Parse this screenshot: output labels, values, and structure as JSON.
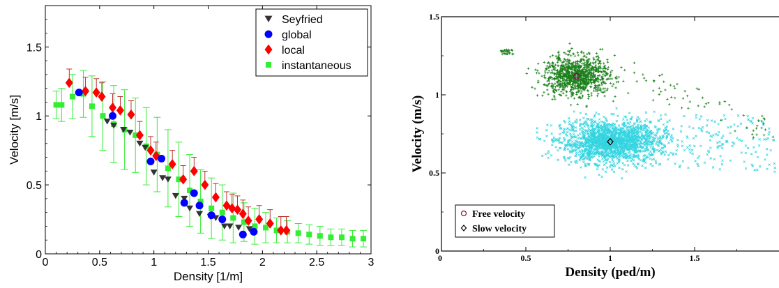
{
  "chart_data": [
    {
      "type": "scatter",
      "title": "",
      "xlabel": "Density [1/m]",
      "ylabel": "Velocity [m/s]",
      "xlim": [
        0,
        3
      ],
      "ylim": [
        0,
        1.8
      ],
      "x_ticks": [
        0,
        0.5,
        1,
        1.5,
        2,
        2.5,
        3
      ],
      "x_tick_labels": [
        "0",
        "0.5",
        "1",
        "1.5",
        "2",
        "2.5",
        "3"
      ],
      "y_ticks": [
        0,
        0.5,
        1,
        1.5
      ],
      "y_tick_labels": [
        "0",
        "0.5",
        "1",
        "1.5"
      ],
      "grid": false,
      "legend_position": "top-right",
      "series": [
        {
          "name": "Seyfried",
          "marker": "triangle-down",
          "color": "#333333",
          "points": [
            [
              0.57,
              0.96
            ],
            [
              0.63,
              0.93
            ],
            [
              0.72,
              0.9
            ],
            [
              0.78,
              0.88
            ],
            [
              0.87,
              0.8
            ],
            [
              0.92,
              0.77
            ],
            [
              1.0,
              0.59
            ],
            [
              1.08,
              0.55
            ],
            [
              1.13,
              0.54
            ],
            [
              1.2,
              0.42
            ],
            [
              1.28,
              0.4
            ],
            [
              1.33,
              0.33
            ],
            [
              1.42,
              0.29
            ],
            [
              1.52,
              0.27
            ],
            [
              1.57,
              0.26
            ],
            [
              1.65,
              0.2
            ],
            [
              1.7,
              0.2
            ],
            [
              1.78,
              0.19
            ],
            [
              1.88,
              0.18
            ]
          ]
        },
        {
          "name": "global",
          "marker": "circle",
          "color": "#0000ff",
          "points": [
            [
              0.31,
              1.17
            ],
            [
              0.62,
              1.0
            ],
            [
              0.97,
              0.67
            ],
            [
              1.07,
              0.69
            ],
            [
              1.28,
              0.37
            ],
            [
              1.37,
              0.44
            ],
            [
              1.42,
              0.35
            ],
            [
              1.53,
              0.28
            ],
            [
              1.63,
              0.25
            ],
            [
              1.82,
              0.14
            ],
            [
              1.92,
              0.16
            ]
          ]
        },
        {
          "name": "local",
          "marker": "diamond",
          "color": "#ff0000",
          "points": [
            [
              0.22,
              1.24
            ],
            [
              0.37,
              1.18
            ],
            [
              0.47,
              1.17
            ],
            [
              0.52,
              1.14
            ],
            [
              0.62,
              1.06
            ],
            [
              0.69,
              1.04
            ],
            [
              0.79,
              1.01
            ],
            [
              0.87,
              0.86
            ],
            [
              0.97,
              0.75
            ],
            [
              1.02,
              0.71
            ],
            [
              1.17,
              0.65
            ],
            [
              1.27,
              0.54
            ],
            [
              1.37,
              0.6
            ],
            [
              1.47,
              0.5
            ],
            [
              1.57,
              0.41
            ],
            [
              1.67,
              0.35
            ],
            [
              1.72,
              0.33
            ],
            [
              1.77,
              0.32
            ],
            [
              1.82,
              0.29
            ],
            [
              1.87,
              0.24
            ],
            [
              1.97,
              0.25
            ],
            [
              2.07,
              0.22
            ],
            [
              2.17,
              0.17
            ],
            [
              2.22,
              0.17
            ]
          ]
        },
        {
          "name": "instantaneous",
          "marker": "square",
          "color": "#33ee33",
          "error_bars": true,
          "points": [
            [
              0.1,
              1.08,
              0.1
            ],
            [
              0.15,
              1.08,
              0.12
            ],
            [
              0.25,
              1.14,
              0.16
            ],
            [
              0.35,
              1.16,
              0.17
            ],
            [
              0.43,
              1.07,
              0.22
            ],
            [
              0.53,
              1.0,
              0.25
            ],
            [
              0.63,
              0.94,
              0.28
            ],
            [
              0.73,
              0.9,
              0.29
            ],
            [
              0.83,
              0.86,
              0.27
            ],
            [
              0.93,
              0.78,
              0.28
            ],
            [
              1.03,
              0.72,
              0.27
            ],
            [
              1.13,
              0.62,
              0.28
            ],
            [
              1.23,
              0.54,
              0.27
            ],
            [
              1.33,
              0.46,
              0.26
            ],
            [
              1.43,
              0.38,
              0.23
            ],
            [
              1.53,
              0.33,
              0.22
            ],
            [
              1.63,
              0.3,
              0.2
            ],
            [
              1.73,
              0.26,
              0.18
            ],
            [
              1.83,
              0.23,
              0.14
            ],
            [
              1.93,
              0.2,
              0.13
            ],
            [
              2.03,
              0.19,
              0.11
            ],
            [
              2.13,
              0.17,
              0.09
            ],
            [
              2.23,
              0.16,
              0.08
            ],
            [
              2.33,
              0.15,
              0.07
            ],
            [
              2.43,
              0.14,
              0.07
            ],
            [
              2.53,
              0.13,
              0.07
            ],
            [
              2.63,
              0.12,
              0.06
            ],
            [
              2.73,
              0.12,
              0.06
            ],
            [
              2.83,
              0.11,
              0.06
            ],
            [
              2.93,
              0.11,
              0.06
            ]
          ]
        }
      ]
    },
    {
      "type": "scatter",
      "title": "",
      "xlabel": "Density (ped/m)",
      "ylabel": "Velocity (m/s)",
      "xlim": [
        0,
        2
      ],
      "ylim": [
        0,
        1.5
      ],
      "x_ticks": [
        0,
        0.5,
        1,
        1.5
      ],
      "x_tick_labels": [
        "0",
        "0.5",
        "1",
        "1.5"
      ],
      "y_ticks": [
        0,
        0.5,
        1,
        1.5
      ],
      "y_tick_labels": [
        "0",
        "0.5",
        "1",
        "1.5"
      ],
      "grid": false,
      "legend_position": "bottom-left",
      "series": [
        {
          "name": "Free velocity",
          "marker": "plus",
          "color": "#1a7f1a",
          "cluster": {
            "center": [
              0.8,
              1.12
            ],
            "spread": [
              0.12,
              0.07
            ]
          },
          "mean_marker": {
            "shape": "circle",
            "x": 0.8,
            "y": 1.12,
            "color": "#8b0a50"
          }
        },
        {
          "name": "Slow velocity",
          "marker": "cross",
          "color": "#33d4e0",
          "cluster": {
            "center": [
              1.0,
              0.7
            ],
            "spread": [
              0.16,
              0.09
            ]
          },
          "mean_marker": {
            "shape": "diamond",
            "x": 1.0,
            "y": 0.7,
            "color": "#000000"
          }
        }
      ]
    }
  ]
}
